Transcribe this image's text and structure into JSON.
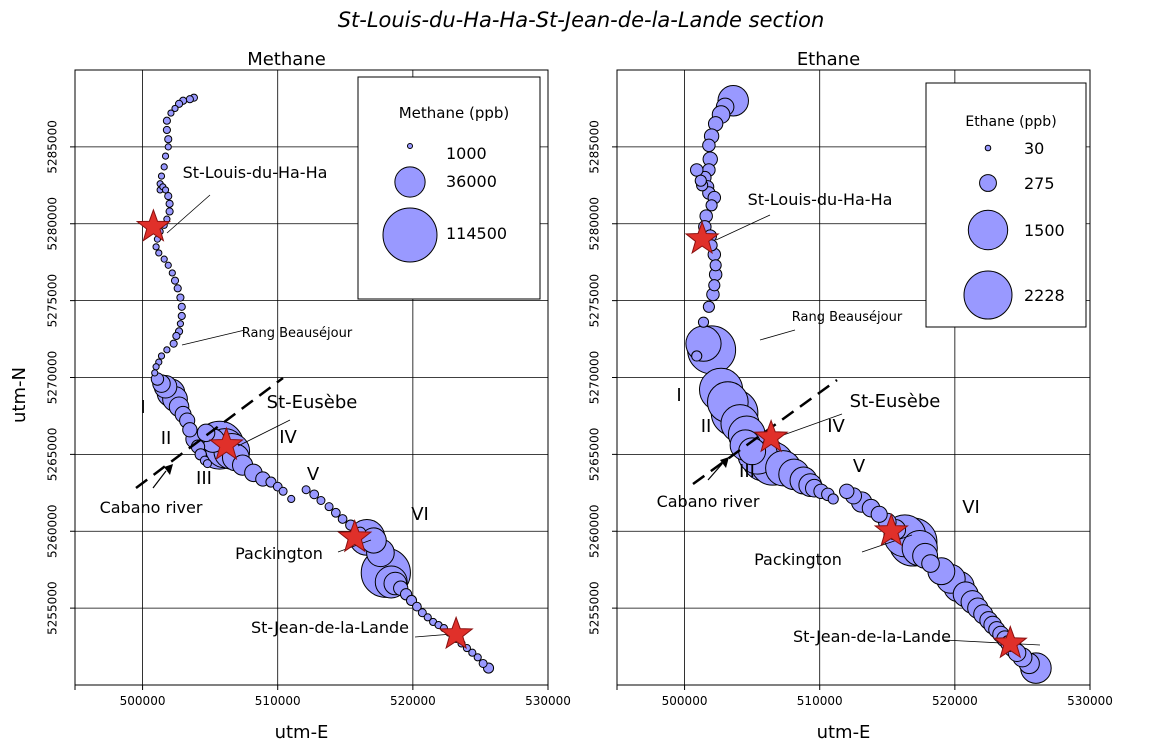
{
  "figure_title": "St-Louis-du-Ha-Ha-St-Jean-de-la-Lande section",
  "chart_data": [
    {
      "type": "scatter",
      "title": "Methane",
      "xlabel": "utm-E",
      "ylabel": "utm-N",
      "xlim": [
        495000,
        530000
      ],
      "ylim": [
        5250000,
        5290000
      ],
      "xticks": [
        500000,
        510000,
        520000,
        530000
      ],
      "xtick_labels": [
        "500000",
        "510000",
        "520000",
        "530000"
      ],
      "yticks": [
        5255000,
        5260000,
        5265000,
        5270000,
        5275000,
        5280000,
        5285000
      ],
      "ytick_labels": [
        "5255000",
        "5260000",
        "5265000",
        "5270000",
        "5275000",
        "5280000",
        "5285000"
      ],
      "grid": true,
      "point_color": "#9999ff",
      "legend": {
        "title": "Methane (ppb)",
        "placement": "top-right",
        "entries": [
          {
            "label": "1000",
            "value": 1000
          },
          {
            "label": "36000",
            "value": 36000
          },
          {
            "label": "114500",
            "value": 114500
          }
        ]
      },
      "series": [
        {
          "x": [
            503800,
            503500,
            503000,
            502700,
            502400,
            502100,
            501800,
            501800,
            501900,
            501900,
            501700,
            501600,
            501400,
            501300,
            501300,
            501500,
            501700,
            501900,
            502000,
            502000,
            501800,
            501600,
            501300,
            501100,
            501000,
            501200,
            501600,
            501900,
            502200,
            502400,
            502600,
            502800,
            502900,
            502900,
            502800,
            502700,
            502500,
            502300,
            501800,
            501400,
            501200,
            501000,
            500900,
            501100,
            501400,
            501700,
            502100,
            502400,
            502700,
            503000,
            503300,
            503500,
            503900,
            504100,
            504300,
            504600,
            504800,
            504700,
            505200,
            505700,
            506100,
            506600,
            506900,
            507400,
            508200,
            508900,
            509500,
            510000,
            510400,
            511000,
            512100,
            512700,
            513200,
            513800,
            514300,
            514800,
            515400,
            516100,
            516600,
            517100,
            517600,
            518000,
            518400,
            518700,
            519100,
            519500,
            519900,
            520300,
            520700,
            521100,
            521500,
            521900,
            522300,
            522700,
            523000,
            523200,
            523600,
            524000,
            524400,
            524800,
            525200,
            525600
          ],
          "y": [
            5288200,
            5288100,
            5288000,
            5287800,
            5287500,
            5287200,
            5286700,
            5286100,
            5285500,
            5285000,
            5284400,
            5283700,
            5283100,
            5282600,
            5282200,
            5282400,
            5282200,
            5281800,
            5281300,
            5280800,
            5280300,
            5279900,
            5279500,
            5279000,
            5278500,
            5278100,
            5277700,
            5277300,
            5276800,
            5276300,
            5275800,
            5275200,
            5274600,
            5274000,
            5273500,
            5273000,
            5272700,
            5272200,
            5271800,
            5271400,
            5271000,
            5270700,
            5270300,
            5269900,
            5269600,
            5269400,
            5269000,
            5268600,
            5268100,
            5267600,
            5267200,
            5266600,
            5266000,
            5265500,
            5265000,
            5264600,
            5264400,
            5266400,
            5265900,
            5265600,
            5265400,
            5265200,
            5264800,
            5264300,
            5263800,
            5263400,
            5263200,
            5262900,
            5262600,
            5262100,
            5262700,
            5262400,
            5262000,
            5261600,
            5261200,
            5260800,
            5260400,
            5259900,
            5259600,
            5259400,
            5258600,
            5257300,
            5256700,
            5256600,
            5256300,
            5255900,
            5255500,
            5255100,
            5254700,
            5254400,
            5254100,
            5253900,
            5253700,
            5253400,
            5253200,
            5253000,
            5252700,
            5252400,
            5252100,
            5251800,
            5251400,
            5251100
          ],
          "values": [
            2000,
            2000,
            2000,
            2000,
            1500,
            1500,
            2000,
            2000,
            2000,
            1500,
            1500,
            1500,
            1500,
            1500,
            1500,
            1500,
            1500,
            2000,
            2000,
            2000,
            1500,
            1500,
            1500,
            1500,
            1500,
            1500,
            1500,
            1500,
            1500,
            2000,
            2000,
            2000,
            2000,
            2000,
            1500,
            2000,
            2000,
            2000,
            1500,
            1500,
            1500,
            1500,
            1500,
            6000,
            12000,
            20000,
            30000,
            24000,
            15000,
            10000,
            9000,
            8000,
            14000,
            7000,
            5000,
            3000,
            2500,
            12000,
            22000,
            90000,
            60000,
            50000,
            28000,
            16000,
            12000,
            8000,
            4000,
            3000,
            2500,
            2000,
            2500,
            3000,
            2500,
            2500,
            3000,
            3000,
            4000,
            5000,
            50000,
            25000,
            30000,
            95000,
            40000,
            20000,
            8000,
            5000,
            4000,
            3000,
            2500,
            2000,
            2000,
            2000,
            2000,
            2000,
            2000,
            2000,
            2000,
            2000,
            2000,
            2000,
            2500,
            4000
          ]
        }
      ],
      "annotations": [
        "St-Louis-du-Ha-Ha",
        "Rang Beauséjour",
        "St-Eusèbe",
        "Cabano river",
        "Packington",
        "St-Jean-de-la-Lande",
        "I",
        "II",
        "III",
        "IV",
        "V",
        "VI"
      ],
      "star_locations": [
        {
          "name": "St-Louis-du-Ha-Ha",
          "x": 500800,
          "y": 5279800
        },
        {
          "name": "St-Eusèbe",
          "x": 506200,
          "y": 5265600
        },
        {
          "name": "Packington",
          "x": 515700,
          "y": 5259600
        },
        {
          "name": "St-Jean-de-la-Lande",
          "x": 523200,
          "y": 5253300
        }
      ]
    },
    {
      "type": "scatter",
      "title": "Ethane",
      "xlabel": "utm-E",
      "ylabel": "",
      "xlim": [
        495000,
        530000
      ],
      "ylim": [
        5250000,
        5290000
      ],
      "xticks": [
        500000,
        510000,
        520000,
        530000
      ],
      "xtick_labels": [
        "500000",
        "510000",
        "520000",
        "530000"
      ],
      "yticks": [
        5255000,
        5260000,
        5265000,
        5270000,
        5275000,
        5280000,
        5285000
      ],
      "ytick_labels": [
        "5255000",
        "5260000",
        "5265000",
        "5270000",
        "5275000",
        "5280000",
        "5285000"
      ],
      "grid": true,
      "point_color": "#9999ff",
      "legend": {
        "title": "Ethane (ppb)",
        "placement": "top-right",
        "entries": [
          {
            "label": "30",
            "value": 30
          },
          {
            "label": "275",
            "value": 275
          },
          {
            "label": "1500",
            "value": 1500
          },
          {
            "label": "2228",
            "value": 2228
          }
        ]
      },
      "series": [
        {
          "x": [
            503600,
            503000,
            502700,
            502300,
            502000,
            501800,
            501900,
            501800,
            501500,
            501300,
            500900,
            501200,
            501700,
            501800,
            502200,
            502000,
            501600,
            501500,
            501900,
            502000,
            502200,
            502300,
            502300,
            502200,
            502100,
            501800,
            501400,
            500900,
            501400,
            502000,
            502700,
            503200,
            503700,
            504100,
            504600,
            504500,
            505000,
            505400,
            505900,
            506500,
            507300,
            508100,
            508800,
            509300,
            509600,
            510100,
            510600,
            511000,
            512000,
            512500,
            513100,
            513800,
            514400,
            515000,
            515600,
            516300,
            516900,
            517400,
            517800,
            518200,
            519000,
            519700,
            520300,
            520800,
            521300,
            521700,
            522100,
            522500,
            522800,
            523100,
            523400,
            523700,
            524000,
            524300,
            524600,
            525000,
            525500,
            526000
          ],
          "y": [
            5288000,
            5287600,
            5287100,
            5286500,
            5285700,
            5285100,
            5284200,
            5283500,
            5283000,
            5282500,
            5283500,
            5282800,
            5282400,
            5282000,
            5281700,
            5281200,
            5280500,
            5279800,
            5279200,
            5278600,
            5278000,
            5277300,
            5276700,
            5276000,
            5275400,
            5274600,
            5273600,
            5271400,
            5272200,
            5271800,
            5269200,
            5268400,
            5267700,
            5267000,
            5266300,
            5265600,
            5265200,
            5265000,
            5264700,
            5264400,
            5264100,
            5263700,
            5263300,
            5263000,
            5262800,
            5262600,
            5262400,
            5262100,
            5262600,
            5262300,
            5261900,
            5261500,
            5261100,
            5260600,
            5260100,
            5259700,
            5259300,
            5258900,
            5258400,
            5257900,
            5257400,
            5256900,
            5256400,
            5255900,
            5255400,
            5255000,
            5254600,
            5254200,
            5253900,
            5253600,
            5253300,
            5253000,
            5252700,
            5252400,
            5252100,
            5251800,
            5251400,
            5251100
          ],
          "values": [
            900,
            300,
            300,
            200,
            200,
            150,
            200,
            150,
            150,
            120,
            150,
            120,
            150,
            150,
            150,
            120,
            150,
            150,
            150,
            120,
            150,
            120,
            150,
            120,
            150,
            120,
            100,
            100,
            1200,
            2228,
            1800,
            1600,
            2100,
            1400,
            1300,
            900,
            700,
            1500,
            1900,
            1800,
            1200,
            900,
            700,
            500,
            300,
            200,
            150,
            100,
            200,
            250,
            400,
            300,
            250,
            300,
            400,
            1700,
            2228,
            1200,
            600,
            300,
            700,
            800,
            900,
            600,
            500,
            400,
            350,
            300,
            300,
            250,
            250,
            250,
            250,
            300,
            300,
            350,
            400,
            900
          ]
        }
      ],
      "annotations": [
        "St-Louis-du-Ha-Ha",
        "Rang Beauséjour",
        "St-Eusèbe",
        "Cabano river",
        "Packington",
        "St-Jean-de-la-Lande",
        "I",
        "II",
        "III",
        "IV",
        "V",
        "VI"
      ],
      "star_locations": [
        {
          "name": "St-Louis-du-Ha-Ha",
          "x": 501300,
          "y": 5279000
        },
        {
          "name": "St-Eusèbe",
          "x": 506400,
          "y": 5266100
        },
        {
          "name": "Packington",
          "x": 515300,
          "y": 5260000
        },
        {
          "name": "St-Jean-de-la-Lande",
          "x": 524100,
          "y": 5252700
        }
      ]
    }
  ]
}
